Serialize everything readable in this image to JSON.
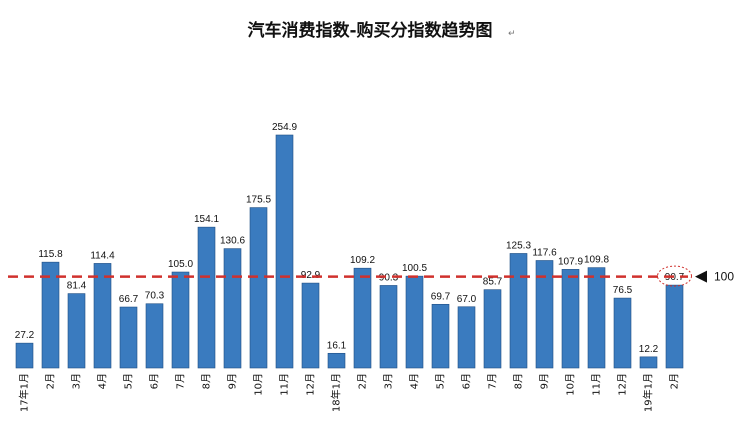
{
  "chart_data": {
    "type": "bar",
    "title": "汽车消费指数-购买分指数趋势图",
    "title_mark": "↵",
    "categories": [
      "17年1月",
      "2月",
      "3月",
      "4月",
      "5月",
      "6月",
      "7月",
      "8月",
      "9月",
      "10月",
      "11月",
      "12月",
      "18年1月",
      "2月",
      "3月",
      "4月",
      "5月",
      "6月",
      "7月",
      "8月",
      "9月",
      "10月",
      "11月",
      "12月",
      "19年1月",
      "2月"
    ],
    "values": [
      27.2,
      115.8,
      81.4,
      114.4,
      66.7,
      70.3,
      105.0,
      154.1,
      130.6,
      175.5,
      254.9,
      92.9,
      16.1,
      109.2,
      90.3,
      100.5,
      69.7,
      67.0,
      85.7,
      125.3,
      117.6,
      107.9,
      109.8,
      76.5,
      12.2,
      90.7
    ],
    "value_labels": [
      "27.2",
      "115.8",
      "81.4",
      "114.4",
      "66.7",
      "70.3",
      "105.0",
      "154.1",
      "130.6",
      "175.5",
      "254.9",
      "92.9",
      "16.1",
      "109.2",
      "90.3",
      "100.5",
      "69.7",
      "67.0",
      "85.7",
      "125.3",
      "117.6",
      "107.9",
      "109.8",
      "76.5",
      "12.2",
      "90.7"
    ],
    "reference_line": {
      "value": 100,
      "label": "100",
      "style": "dashed",
      "color": "#d0312d"
    },
    "highlighted_label_index": 25,
    "ylim": [
      0,
      265
    ],
    "grid": false,
    "legend": "none",
    "xlabel": "",
    "ylabel": "",
    "bar_color": "#3a7bbf",
    "bar_edge_color": "#1f4e83",
    "highlight_circle_color": "#d0312d"
  }
}
